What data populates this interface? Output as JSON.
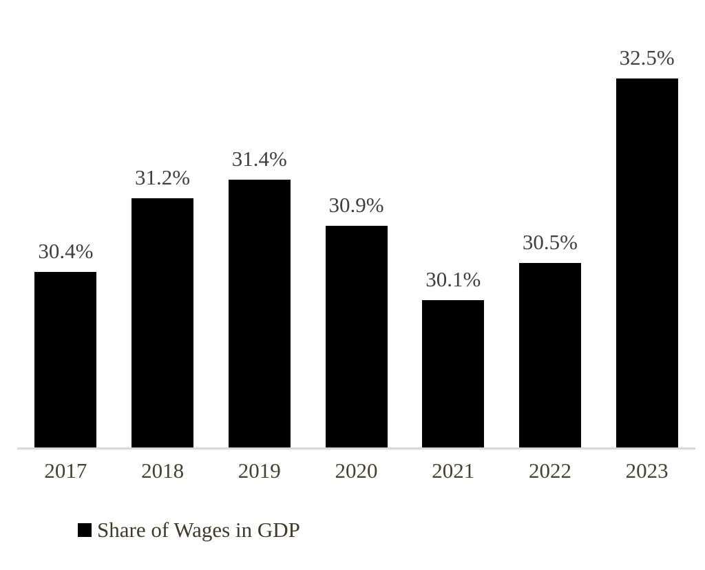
{
  "chart_data": {
    "type": "bar",
    "title": "",
    "categories": [
      "2017",
      "2018",
      "2019",
      "2020",
      "2021",
      "2022",
      "2023"
    ],
    "values": [
      30.4,
      31.2,
      31.4,
      30.9,
      30.1,
      30.5,
      32.5
    ],
    "data_labels": [
      "30.4%",
      "31.2%",
      "31.4%",
      "30.9%",
      "30.1%",
      "30.5%",
      "32.5%"
    ],
    "series_name": "Share of Wages in GDP",
    "xlabel": "",
    "ylabel": "",
    "ylim": [
      28.5,
      33.2
    ],
    "y_axis_visible": false,
    "grid": false,
    "legend_position": "bottom-left",
    "bar_color": "#000000",
    "axis_line_color": "#d9d9d9",
    "data_label_color": "#3f3f3f",
    "tick_label_color": "#45412e"
  },
  "legend": {
    "label": "Share of Wages in GDP"
  }
}
